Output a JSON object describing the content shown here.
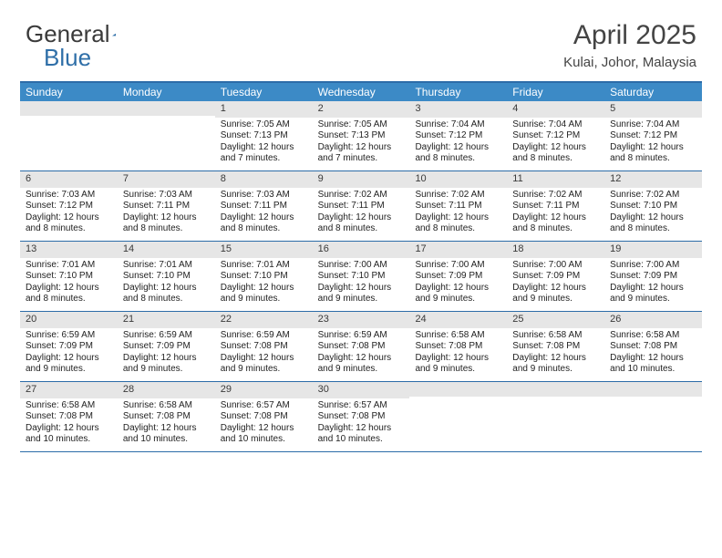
{
  "brand": {
    "part1": "General",
    "part2": "Blue"
  },
  "logo_colors": {
    "text_gray": "#5b5b5b",
    "triangle": "#2f6fa8"
  },
  "title": "April 2025",
  "location": "Kulai, Johor, Malaysia",
  "header_bg": "#3c8ac6",
  "border_color": "#2c6ca8",
  "daynum_bg": "#e6e6e6",
  "dow": [
    "Sunday",
    "Monday",
    "Tuesday",
    "Wednesday",
    "Thursday",
    "Friday",
    "Saturday"
  ],
  "weeks": [
    [
      null,
      null,
      {
        "n": "1",
        "sr": "7:05 AM",
        "ss": "7:13 PM",
        "dl": "12 hours and 7 minutes."
      },
      {
        "n": "2",
        "sr": "7:05 AM",
        "ss": "7:13 PM",
        "dl": "12 hours and 7 minutes."
      },
      {
        "n": "3",
        "sr": "7:04 AM",
        "ss": "7:12 PM",
        "dl": "12 hours and 8 minutes."
      },
      {
        "n": "4",
        "sr": "7:04 AM",
        "ss": "7:12 PM",
        "dl": "12 hours and 8 minutes."
      },
      {
        "n": "5",
        "sr": "7:04 AM",
        "ss": "7:12 PM",
        "dl": "12 hours and 8 minutes."
      }
    ],
    [
      {
        "n": "6",
        "sr": "7:03 AM",
        "ss": "7:12 PM",
        "dl": "12 hours and 8 minutes."
      },
      {
        "n": "7",
        "sr": "7:03 AM",
        "ss": "7:11 PM",
        "dl": "12 hours and 8 minutes."
      },
      {
        "n": "8",
        "sr": "7:03 AM",
        "ss": "7:11 PM",
        "dl": "12 hours and 8 minutes."
      },
      {
        "n": "9",
        "sr": "7:02 AM",
        "ss": "7:11 PM",
        "dl": "12 hours and 8 minutes."
      },
      {
        "n": "10",
        "sr": "7:02 AM",
        "ss": "7:11 PM",
        "dl": "12 hours and 8 minutes."
      },
      {
        "n": "11",
        "sr": "7:02 AM",
        "ss": "7:11 PM",
        "dl": "12 hours and 8 minutes."
      },
      {
        "n": "12",
        "sr": "7:02 AM",
        "ss": "7:10 PM",
        "dl": "12 hours and 8 minutes."
      }
    ],
    [
      {
        "n": "13",
        "sr": "7:01 AM",
        "ss": "7:10 PM",
        "dl": "12 hours and 8 minutes."
      },
      {
        "n": "14",
        "sr": "7:01 AM",
        "ss": "7:10 PM",
        "dl": "12 hours and 8 minutes."
      },
      {
        "n": "15",
        "sr": "7:01 AM",
        "ss": "7:10 PM",
        "dl": "12 hours and 9 minutes."
      },
      {
        "n": "16",
        "sr": "7:00 AM",
        "ss": "7:10 PM",
        "dl": "12 hours and 9 minutes."
      },
      {
        "n": "17",
        "sr": "7:00 AM",
        "ss": "7:09 PM",
        "dl": "12 hours and 9 minutes."
      },
      {
        "n": "18",
        "sr": "7:00 AM",
        "ss": "7:09 PM",
        "dl": "12 hours and 9 minutes."
      },
      {
        "n": "19",
        "sr": "7:00 AM",
        "ss": "7:09 PM",
        "dl": "12 hours and 9 minutes."
      }
    ],
    [
      {
        "n": "20",
        "sr": "6:59 AM",
        "ss": "7:09 PM",
        "dl": "12 hours and 9 minutes."
      },
      {
        "n": "21",
        "sr": "6:59 AM",
        "ss": "7:09 PM",
        "dl": "12 hours and 9 minutes."
      },
      {
        "n": "22",
        "sr": "6:59 AM",
        "ss": "7:08 PM",
        "dl": "12 hours and 9 minutes."
      },
      {
        "n": "23",
        "sr": "6:59 AM",
        "ss": "7:08 PM",
        "dl": "12 hours and 9 minutes."
      },
      {
        "n": "24",
        "sr": "6:58 AM",
        "ss": "7:08 PM",
        "dl": "12 hours and 9 minutes."
      },
      {
        "n": "25",
        "sr": "6:58 AM",
        "ss": "7:08 PM",
        "dl": "12 hours and 9 minutes."
      },
      {
        "n": "26",
        "sr": "6:58 AM",
        "ss": "7:08 PM",
        "dl": "12 hours and 10 minutes."
      }
    ],
    [
      {
        "n": "27",
        "sr": "6:58 AM",
        "ss": "7:08 PM",
        "dl": "12 hours and 10 minutes."
      },
      {
        "n": "28",
        "sr": "6:58 AM",
        "ss": "7:08 PM",
        "dl": "12 hours and 10 minutes."
      },
      {
        "n": "29",
        "sr": "6:57 AM",
        "ss": "7:08 PM",
        "dl": "12 hours and 10 minutes."
      },
      {
        "n": "30",
        "sr": "6:57 AM",
        "ss": "7:08 PM",
        "dl": "12 hours and 10 minutes."
      },
      null,
      null,
      null
    ]
  ],
  "labels": {
    "sunrise": "Sunrise:",
    "sunset": "Sunset:",
    "daylight": "Daylight:"
  }
}
